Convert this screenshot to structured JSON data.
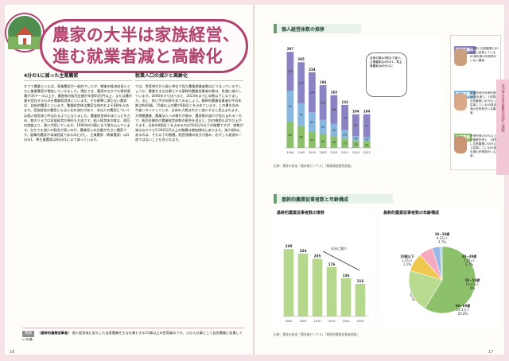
{
  "left_page": {
    "title_line1": "農家の大半は家族経営、",
    "title_line2": "進む就業者減と高齢化",
    "col1_heading": "4分の1に減った主業農家",
    "col1_body": "かつて農業といえば、専業農家が一般的でしたが、戦後の経済成長とともに兼業農家が増加していきました。現在では、農家のなかでも耕地面積が30アール以上か、農産物の販売金額が年間50万円以上、または農作業を受託するものを農業経営体といいます。その基準に満たない農家は、自給的農家といいます。農業経営体は農家全体のおよそ6割を占めます。家族経営の農家にも法人化の流れがあり、非法人の農家については個人経営体と呼ばれるようになりました。農業経営体のほとんどを占め、数のうえでは家族経営が現在も主流です。個人経営体の数は、前回の調査より、減少が続いています。1990年の3割にまで落ち込んでいます。なかでも減少の割合が高いのが、農業収入の比重が大きい農家です。副業的農家が半減程度であるのに対し、主業農家（専業農家）は4分の1、準主業農家は8分の1にまで減っています。",
    "col2_heading": "就業人口の減少と高齢化",
    "col2_body": "では、世帯単位から個人単位で見た農業就業者数はどうなっているでしょうか。農業を主な仕事とする基幹的農業従事者の数は、急激に減少しています。2000年から比べると、2023年までに半数以下になりました。次に、担い手の年齢を見てみましょう。基幹的農業従事者の平均年齢は約68歳。70歳以上の層が6割近くを占めています。この層を含め、今後リタイヤしていき、全体の人数は大きく減少すると見込まれます。大規模農業、農業法人への移行が進み、農家数の減少が見込まれる一方で、販売金額別の農業経営体数の割合を見ると、別の様相も浮かび上がります。全体の8割近くを占めるのは500万円以下の階層ですが、総数が減るなかでも5,000万円以上の階層は増加傾向にあります。減少傾向にあるのは、それ以下の階層。経営規模の拡大が進み、必ずしも衰退の一途ではないことも見られます。",
    "note_badge": "用語",
    "note_term": "〈基幹的農業従事者〉",
    "note_text": "個人経営体に従えした自家農業を主な仕事とする15歳以上の世帯員のうち、ふだん仕事として自営農業に従事している者。",
    "page_number": "16"
  },
  "right_page": {
    "chart1_heading": "個人経営体数の推移",
    "chart1_source": "出典：農林水産省「農林業センサス」「農業構造動態調査」",
    "callout_text": "全体の数は3割まで減少。主業農家は4分の1、準主業農家は8分の1に",
    "legend": [
      {
        "title": "副業的農家",
        "color": "#8a84c4",
        "desc": "1年間に自営農業に60日以上従事している65歳未満の世帯員がいない農家。"
      },
      {
        "title": "準主業農家",
        "color": "#88b8e0",
        "desc": "農業所得が世帯所得の50%未満で、1年間に自営農業に60日以上従事している65歳未満の世帯員がいる農家。"
      },
      {
        "title": "主業農家",
        "color": "#8cc06a",
        "desc": "世帯所得の50%以上が農業所得で、1年間に自営農業に60日以上従事している65歳未満の世帯員がいる農家。"
      }
    ],
    "chart2_heading": "基幹的農業従事者数と年齢構成",
    "chart2a_title": "基幹的農業従事者数の推移",
    "chart2a_arrow": "半分に減少",
    "chart2b_title": "基幹的農業従事者数の年齢構成",
    "chart2_source": "出典：農林水産省「農林業センサス」「基幹的農業従事者調査」",
    "side_tab": "第1章 日本の農業の現状と課題",
    "page_number": "17"
  },
  "chart_data": [
    {
      "type": "bar",
      "title": "個人経営体数の推移",
      "categories": [
        "1990",
        "1995",
        "2000",
        "2005",
        "2010",
        "2015",
        "2020",
        "2023"
      ],
      "series": [
        {
          "name": "主業農家",
          "values": [
            82,
            68,
            50,
            43,
            36,
            29,
            23,
            20
          ]
        },
        {
          "name": "準主業農家",
          "values": [
            95,
            70,
            60,
            44,
            39,
            26,
            14,
            13
          ]
        },
        {
          "name": "副業的農家",
          "values": [
            120,
            127,
            124,
            107,
            88,
            78,
            67,
            71
          ]
        }
      ],
      "totals": [
        297,
        265,
        234,
        194,
        163,
        133,
        104,
        104
      ],
      "ylim": [
        0,
        300
      ]
    },
    {
      "type": "bar",
      "title": "基幹的農業従事者数の推移",
      "categories": [
        "2000",
        "2005",
        "2010",
        "2015",
        "2020",
        "2023"
      ],
      "values": [
        240,
        224,
        205,
        176,
        136,
        116
      ],
      "ylim": [
        0,
        300
      ]
    },
    {
      "type": "pie",
      "title": "基幹的農業従事者数の年齢構成",
      "slices": [
        {
          "label": "70歳以上",
          "percent": 58.7,
          "value": "68.3万人"
        },
        {
          "label": "60~69歳",
          "percent": 20.8,
          "value": "24.3万人"
        },
        {
          "label": "50~59歳",
          "percent": 9.0,
          "value": "10.4万人"
        },
        {
          "label": "40~49歳",
          "percent": 6.7,
          "value": "7.8万人"
        },
        {
          "label": "30~39歳",
          "percent": 3.7,
          "value": "4.3万人"
        },
        {
          "label": "29歳以下",
          "percent": 1.1,
          "value": "1.3万人"
        }
      ],
      "colors": [
        "#8cc06a",
        "#b9db8f",
        "#f1c84e",
        "#f7a9bd",
        "#98b7e3",
        "#a2cfe9"
      ]
    }
  ]
}
